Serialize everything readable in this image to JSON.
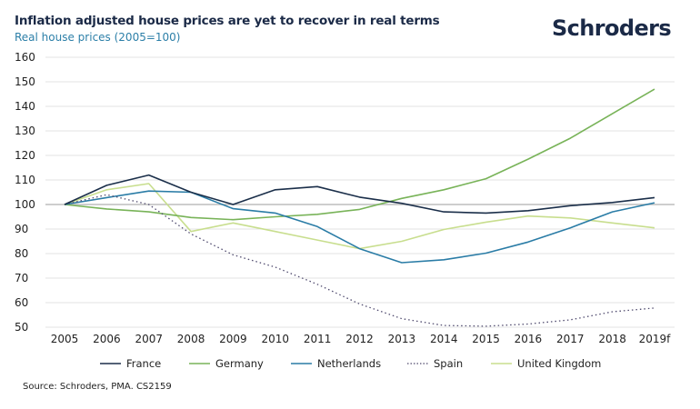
{
  "header": {
    "title": "Inflation adjusted house prices are yet to recover in real terms",
    "subtitle": "Real house prices (2005=100)",
    "logo": "Schroders"
  },
  "footer": {
    "source": "Source: Schroders, PMA. CS2159"
  },
  "colors": {
    "title": "#1b2a47",
    "subtitle": "#2c7fa8",
    "gridline": "#e3e3e3",
    "baseline": "#bdbdbd"
  },
  "chart_data": {
    "type": "line",
    "title": "Inflation adjusted house prices are yet to recover in real terms",
    "subtitle": "Real house prices (2005=100)",
    "xlabel": "",
    "ylabel": "",
    "x": [
      "2005",
      "2006",
      "2007",
      "2008",
      "2009",
      "2010",
      "2011",
      "2012",
      "2013",
      "2014",
      "2015",
      "2016",
      "2017",
      "2018",
      "2019f"
    ],
    "ylim": [
      50,
      160
    ],
    "yticks": [
      50,
      60,
      70,
      80,
      90,
      100,
      110,
      120,
      130,
      140,
      150,
      160
    ],
    "grid": true,
    "baseline": 100,
    "legend_position": "bottom",
    "series": [
      {
        "name": "France",
        "color": "#1b2f4a",
        "style": "solid",
        "values": [
          100,
          107.8,
          112,
          105,
          100,
          106,
          107.3,
          103,
          100.5,
          97,
          96.5,
          97.5,
          99.5,
          100.8,
          102.8
        ]
      },
      {
        "name": "Germany",
        "color": "#78b358",
        "style": "solid",
        "values": [
          100,
          98.2,
          97,
          94.7,
          93.8,
          95,
          96,
          98,
          102.5,
          106,
          110.5,
          118.5,
          127,
          137,
          147
        ]
      },
      {
        "name": "Netherlands",
        "color": "#2a7ca6",
        "style": "solid",
        "values": [
          100,
          102.8,
          105.5,
          105,
          98.3,
          96.5,
          91,
          82,
          76.3,
          77.5,
          80.2,
          84.7,
          90.5,
          97,
          100.7
        ]
      },
      {
        "name": "Spain",
        "color": "#4f4a6e",
        "style": "dotted",
        "values": [
          100,
          104,
          100,
          88,
          79.5,
          74.5,
          67.5,
          59.5,
          53.5,
          50.7,
          50.4,
          51.3,
          53,
          56.3,
          57.8
        ]
      },
      {
        "name": "United Kingdom",
        "color": "#c8de8e",
        "style": "solid",
        "values": [
          100,
          106,
          108.5,
          89,
          92.5,
          89,
          85.5,
          82,
          85,
          89.8,
          92.8,
          95.3,
          94.5,
          92.5,
          90.5
        ]
      }
    ]
  }
}
